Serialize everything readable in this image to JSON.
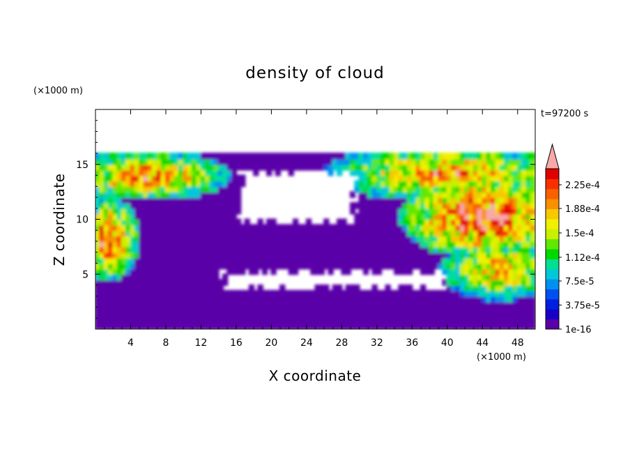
{
  "chart_data": {
    "type": "heatmap",
    "title": "density of cloud",
    "xlabel": "X coordinate",
    "ylabel": "Z coordinate",
    "x_unit": "(×1000 m)",
    "y_unit": "(×1000 m)",
    "time_label": "t=97200 s",
    "xlim": [
      0,
      50
    ],
    "ylim": [
      0,
      20
    ],
    "x_ticks": [
      "4",
      "8",
      "12",
      "16",
      "20",
      "24",
      "28",
      "32",
      "36",
      "40",
      "44",
      "48"
    ],
    "x_tick_values": [
      4,
      8,
      12,
      16,
      20,
      24,
      28,
      32,
      36,
      40,
      44,
      48
    ],
    "y_ticks": [
      "5",
      "10",
      "15"
    ],
    "y_tick_values": [
      5,
      10,
      15
    ],
    "grid": false,
    "colorbar": {
      "labels": [
        "2.25e-4",
        "1.88e-4",
        "1.5e-4",
        "1.12e-4",
        "7.5e-5",
        "3.75e-5",
        "1e-16"
      ],
      "label_values": [
        0.000225,
        0.000188,
        0.00015,
        0.000112,
        7.5e-05,
        3.75e-05,
        1e-16
      ],
      "vmin": 0,
      "vmax": 0.00025,
      "extend": "max",
      "colors": [
        "#5a00a8",
        "#1800c8",
        "#0020e0",
        "#0050f0",
        "#0090f0",
        "#00c8d8",
        "#00e090",
        "#00d800",
        "#60e800",
        "#c8f000",
        "#f0f000",
        "#f8c800",
        "#f89000",
        "#f86000",
        "#f83000",
        "#e00000"
      ],
      "over_color": "#f8a8a8"
    },
    "field": {
      "cloud_top_z": 16,
      "clear_regions": [
        {
          "x": [
            16,
            30
          ],
          "z": [
            9.5,
            14.5
          ]
        },
        {
          "x": [
            14,
            40
          ],
          "z": [
            3.5,
            5.5
          ]
        },
        {
          "x": [
            0,
            50
          ],
          "z": [
            16,
            20
          ]
        }
      ],
      "high_density_regions": [
        {
          "x": [
            0,
            12
          ],
          "z": [
            13,
            15
          ],
          "level": 0.00019
        },
        {
          "x": [
            0,
            3
          ],
          "z": [
            6,
            10.5
          ],
          "level": 0.0002
        },
        {
          "x": [
            30,
            50
          ],
          "z": [
            13,
            15.5
          ],
          "level": 0.00018
        },
        {
          "x": [
            38,
            50
          ],
          "z": [
            8,
            12.5
          ],
          "level": 0.00022
        },
        {
          "x": [
            42,
            50
          ],
          "z": [
            4,
            7
          ],
          "level": 0.00017
        }
      ]
    }
  }
}
